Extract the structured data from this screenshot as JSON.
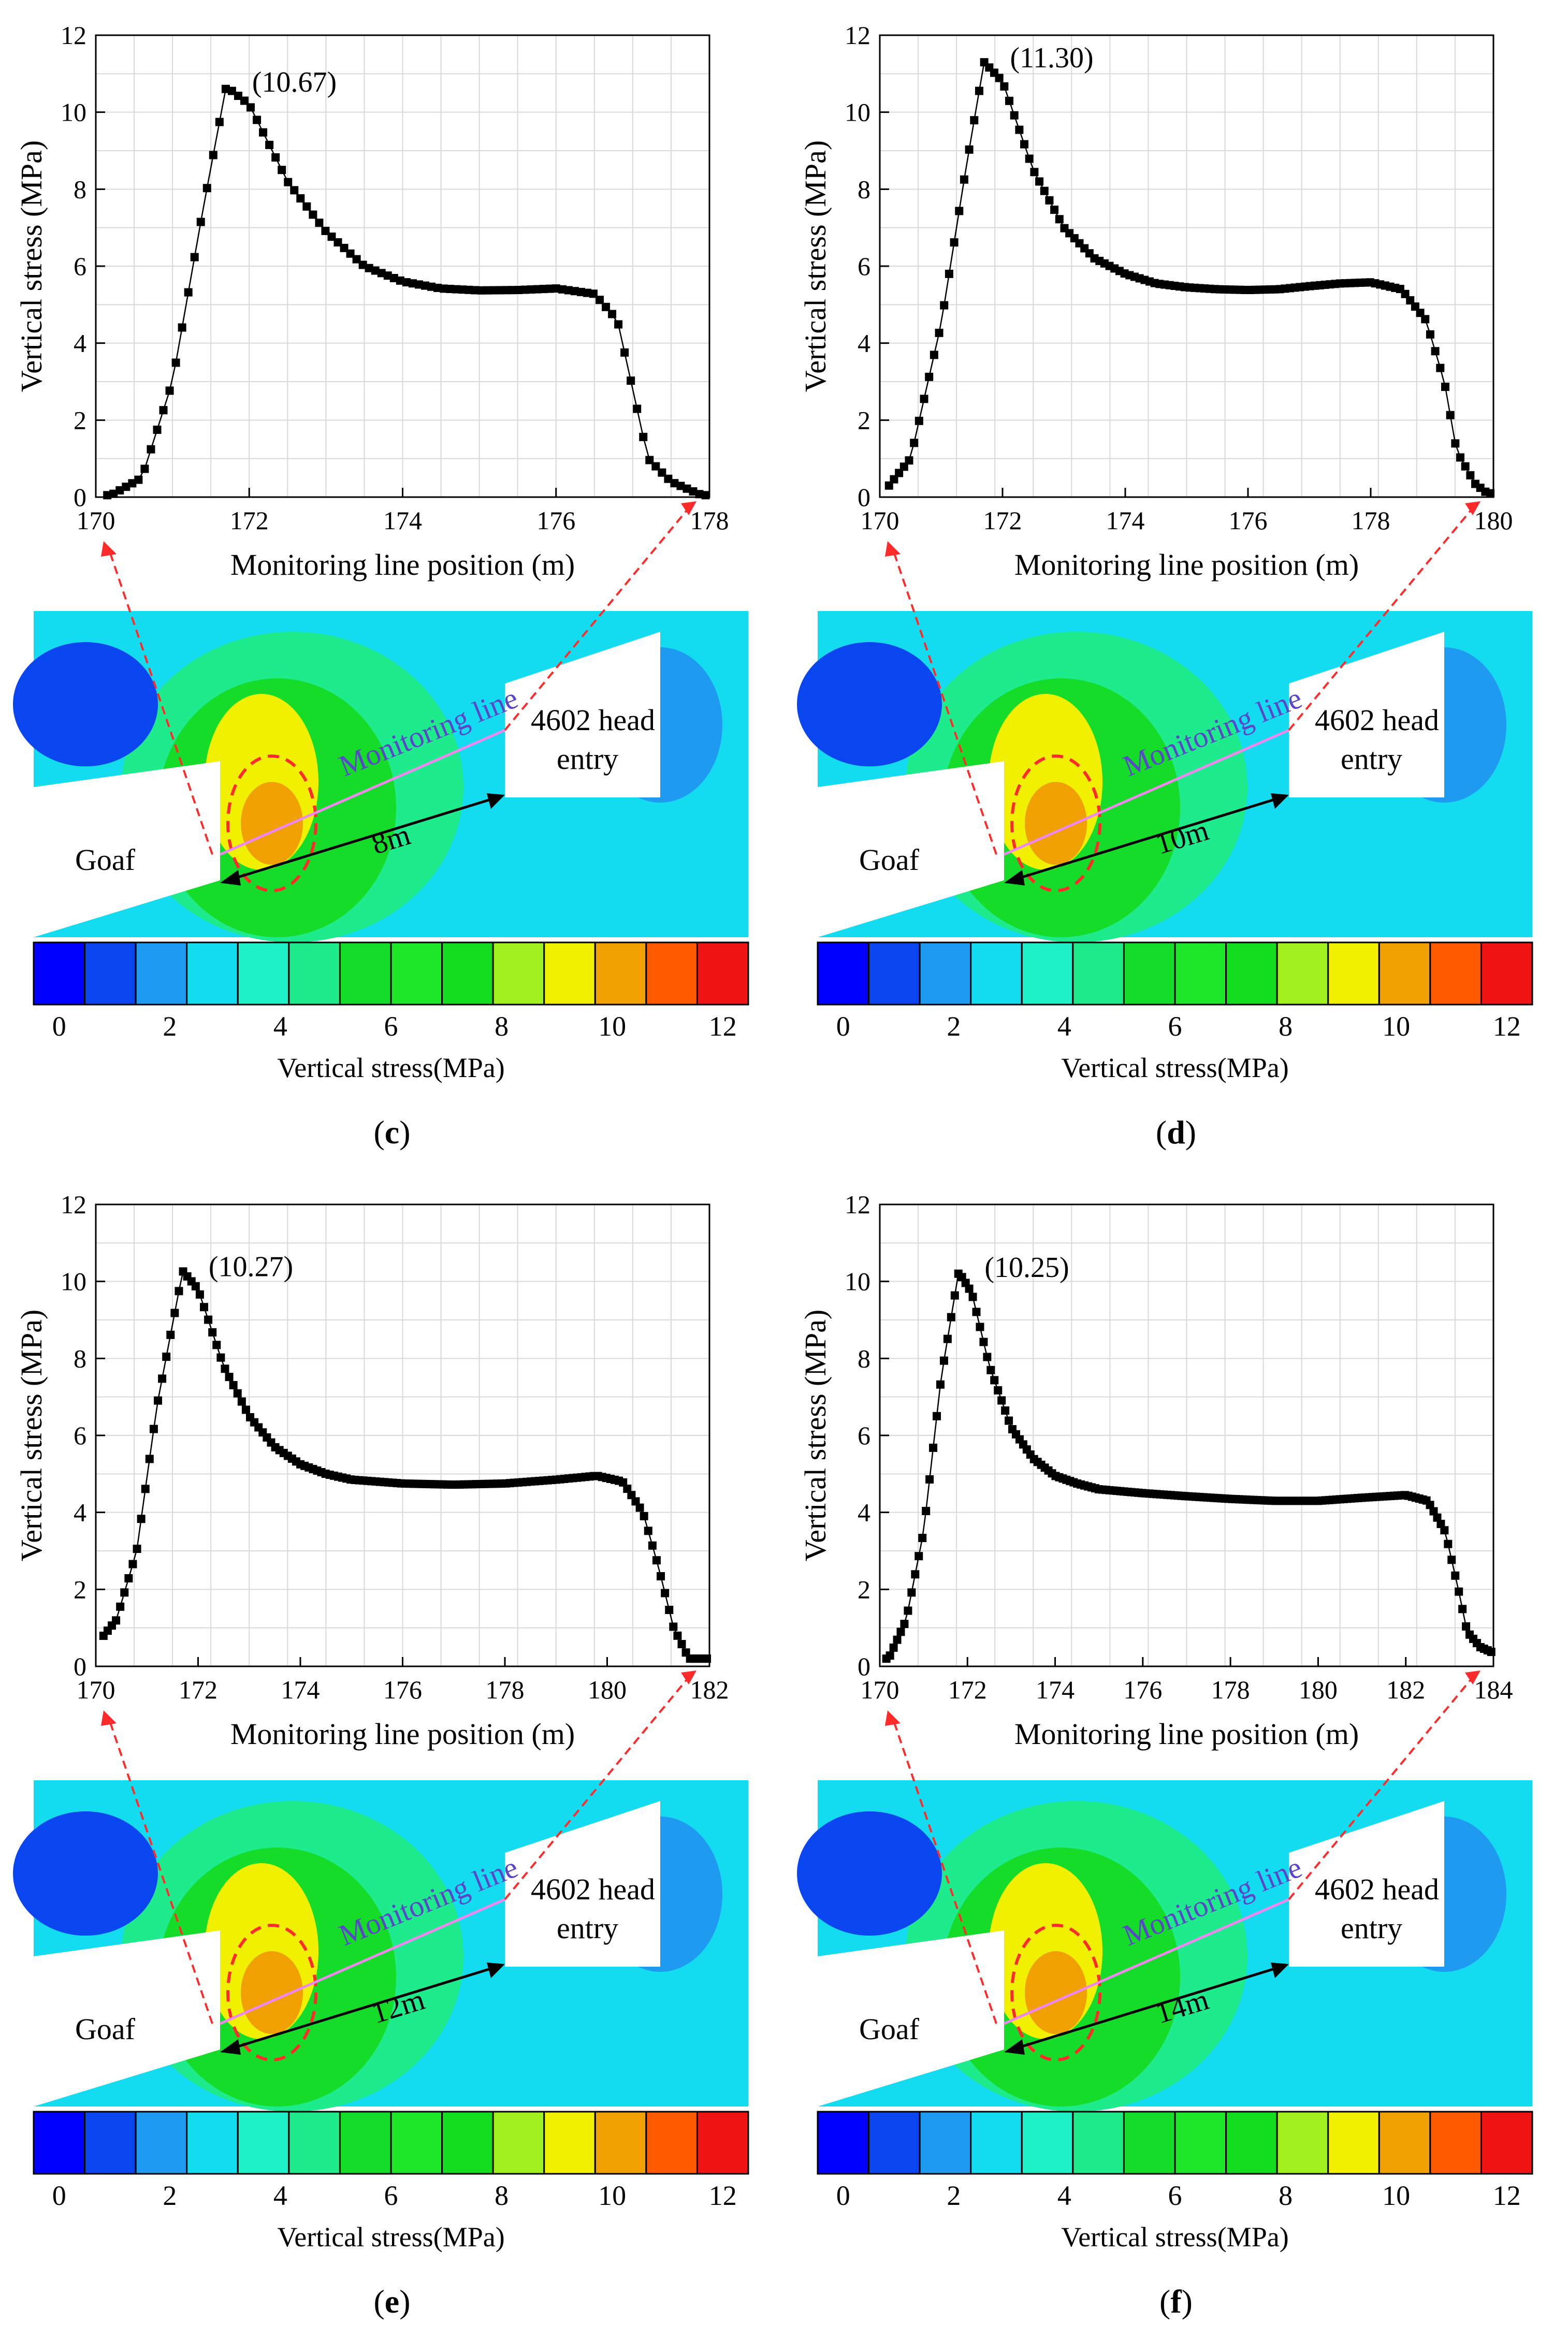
{
  "colors": {
    "marker": "#000000",
    "grid": "#d9d9d9",
    "arrow_red": "#ff2a2a",
    "monitor_line": "#ee88ee",
    "monitor_text": "#5a46c8",
    "colorbar": [
      "#0000ff",
      "#0a46f0",
      "#1e9bf0",
      "#14dcf0",
      "#1ef0c8",
      "#1eeb8c",
      "#14dc28",
      "#1ee628",
      "#14dc1e",
      "#a0f01e",
      "#f0f000",
      "#f0a000",
      "#ff5a00",
      "#f01414"
    ]
  },
  "panels": [
    {
      "id": "c",
      "caption": "c",
      "chart_data": {
        "type": "scatter",
        "xlabel": "Monitoring line position (m)",
        "ylabel": "Vertical stress (MPa)",
        "xlim": [
          170,
          178
        ],
        "ylim": [
          0,
          12
        ],
        "xticks": [
          "170",
          "172",
          "174",
          "176",
          "178"
        ],
        "yticks": [
          "0",
          "2",
          "4",
          "6",
          "8",
          "10",
          "12"
        ],
        "peak_label": "(10.67)",
        "peak": {
          "x": 171.7,
          "y": 10.67
        },
        "profile": [
          [
            170.2,
            0.05
          ],
          [
            170.6,
            0.5
          ],
          [
            171.0,
            3.0
          ],
          [
            171.4,
            7.5
          ],
          [
            171.7,
            10.67
          ],
          [
            172.0,
            10.2
          ],
          [
            172.5,
            8.2
          ],
          [
            173.0,
            6.9
          ],
          [
            173.5,
            6.0
          ],
          [
            174.0,
            5.6
          ],
          [
            174.5,
            5.42
          ],
          [
            175.0,
            5.37
          ],
          [
            175.5,
            5.38
          ],
          [
            176.0,
            5.42
          ],
          [
            176.5,
            5.28
          ],
          [
            176.8,
            4.6
          ],
          [
            177.0,
            2.8
          ],
          [
            177.2,
            1.0
          ],
          [
            177.5,
            0.4
          ],
          [
            177.9,
            0.05
          ]
        ]
      },
      "map": {
        "goaf_label": "Goaf",
        "entry_label_1": "4602 head",
        "entry_label_2": "entry",
        "monitor_label": "Monitoring line",
        "distance_label": "8m",
        "colorbar_title": "Vertical stress(MPa)",
        "colorbar_ticks": [
          "0",
          "2",
          "4",
          "6",
          "8",
          "10",
          "12"
        ]
      }
    },
    {
      "id": "d",
      "caption": "d",
      "chart_data": {
        "type": "scatter",
        "xlabel": "Monitoring line position (m)",
        "ylabel": "Vertical stress (MPa)",
        "xlim": [
          170,
          180
        ],
        "ylim": [
          0,
          12
        ],
        "xticks": [
          "170",
          "172",
          "174",
          "176",
          "178",
          "180"
        ],
        "yticks": [
          "0",
          "2",
          "4",
          "6",
          "8",
          "10",
          "12"
        ],
        "peak_label": "(11.30)",
        "peak": {
          "x": 171.7,
          "y": 11.3
        },
        "profile": [
          [
            170.1,
            0.2
          ],
          [
            170.5,
            1.0
          ],
          [
            171.0,
            4.5
          ],
          [
            171.4,
            8.5
          ],
          [
            171.7,
            11.3
          ],
          [
            172.0,
            10.8
          ],
          [
            172.5,
            8.5
          ],
          [
            173.0,
            7.0
          ],
          [
            173.5,
            6.2
          ],
          [
            174.0,
            5.8
          ],
          [
            174.5,
            5.55
          ],
          [
            175.0,
            5.45
          ],
          [
            175.5,
            5.4
          ],
          [
            176.0,
            5.38
          ],
          [
            176.5,
            5.4
          ],
          [
            177.0,
            5.48
          ],
          [
            177.5,
            5.55
          ],
          [
            178.0,
            5.58
          ],
          [
            178.5,
            5.4
          ],
          [
            178.9,
            4.6
          ],
          [
            179.2,
            3.0
          ],
          [
            179.4,
            1.2
          ],
          [
            179.7,
            0.35
          ],
          [
            179.9,
            0.1
          ]
        ]
      },
      "map": {
        "goaf_label": "Goaf",
        "entry_label_1": "4602 head",
        "entry_label_2": "entry",
        "monitor_label": "Monitoring line",
        "distance_label": "10m",
        "colorbar_title": "Vertical stress(MPa)",
        "colorbar_ticks": [
          "0",
          "2",
          "4",
          "6",
          "8",
          "10",
          "12"
        ]
      }
    },
    {
      "id": "e",
      "caption": "e",
      "chart_data": {
        "type": "scatter",
        "xlabel": "Monitoring line position (m)",
        "ylabel": "Vertical stress (MPa)",
        "xlim": [
          170,
          182
        ],
        "ylim": [
          0,
          12
        ],
        "xticks": [
          "170",
          "172",
          "174",
          "176",
          "178",
          "180",
          "182"
        ],
        "yticks": [
          "0",
          "2",
          "4",
          "6",
          "8",
          "10",
          "12"
        ],
        "peak_label": "(10.27)",
        "peak": {
          "x": 171.7,
          "y": 10.27
        },
        "profile": [
          [
            170.0,
            0.55
          ],
          [
            170.4,
            1.2
          ],
          [
            170.8,
            3.0
          ],
          [
            171.2,
            6.8
          ],
          [
            171.7,
            10.27
          ],
          [
            172.0,
            9.8
          ],
          [
            172.5,
            7.8
          ],
          [
            173.0,
            6.5
          ],
          [
            173.5,
            5.7
          ],
          [
            174.0,
            5.25
          ],
          [
            174.5,
            5.0
          ],
          [
            175.0,
            4.85
          ],
          [
            176.0,
            4.75
          ],
          [
            177.0,
            4.72
          ],
          [
            178.0,
            4.75
          ],
          [
            179.0,
            4.85
          ],
          [
            179.8,
            4.95
          ],
          [
            180.3,
            4.8
          ],
          [
            180.7,
            4.0
          ],
          [
            181.0,
            2.6
          ],
          [
            181.3,
            1.0
          ],
          [
            181.6,
            0.2
          ],
          [
            182.0,
            0.2
          ]
        ]
      },
      "map": {
        "goaf_label": "Goaf",
        "entry_label_1": "4602 head",
        "entry_label_2": "entry",
        "monitor_label": "Monitoring line",
        "distance_label": "12m",
        "colorbar_title": "Vertical stress(MPa)",
        "colorbar_ticks": [
          "0",
          "2",
          "4",
          "6",
          "8",
          "10",
          "12"
        ]
      }
    },
    {
      "id": "f",
      "caption": "f",
      "chart_data": {
        "type": "scatter",
        "xlabel": "Monitoring line position (m)",
        "ylabel": "Vertical stress (MPa)",
        "xlim": [
          170,
          184
        ],
        "ylim": [
          0,
          12
        ],
        "xticks": [
          "170",
          "172",
          "174",
          "176",
          "178",
          "180",
          "182",
          "184"
        ],
        "yticks": [
          "0",
          "2",
          "4",
          "6",
          "8",
          "10",
          "12"
        ],
        "peak_label": "(10.25)",
        "peak": {
          "x": 171.8,
          "y": 10.25
        },
        "profile": [
          [
            170.2,
            0.2
          ],
          [
            170.6,
            1.2
          ],
          [
            171.0,
            3.5
          ],
          [
            171.4,
            7.5
          ],
          [
            171.8,
            10.25
          ],
          [
            172.1,
            9.7
          ],
          [
            172.5,
            7.8
          ],
          [
            173.0,
            6.2
          ],
          [
            173.5,
            5.4
          ],
          [
            174.0,
            4.95
          ],
          [
            174.5,
            4.75
          ],
          [
            175.0,
            4.6
          ],
          [
            176.0,
            4.5
          ],
          [
            177.0,
            4.42
          ],
          [
            178.0,
            4.35
          ],
          [
            179.0,
            4.3
          ],
          [
            180.0,
            4.3
          ],
          [
            181.0,
            4.38
          ],
          [
            182.0,
            4.45
          ],
          [
            182.5,
            4.3
          ],
          [
            182.9,
            3.5
          ],
          [
            183.2,
            2.0
          ],
          [
            183.4,
            0.9
          ],
          [
            183.7,
            0.5
          ],
          [
            184.0,
            0.35
          ]
        ]
      },
      "map": {
        "goaf_label": "Goaf",
        "entry_label_1": "4602 head",
        "entry_label_2": "entry",
        "monitor_label": "Monitoring line",
        "distance_label": "14m",
        "colorbar_title": "Vertical stress(MPa)",
        "colorbar_ticks": [
          "0",
          "2",
          "4",
          "6",
          "8",
          "10",
          "12"
        ]
      }
    }
  ]
}
